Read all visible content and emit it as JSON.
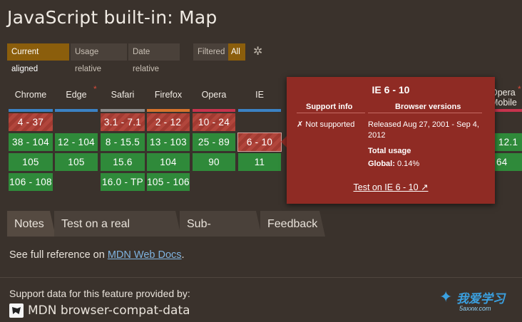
{
  "title": "JavaScript built-in: Map",
  "filters": {
    "current_aligned": "Current aligned",
    "usage_relative": "Usage relative",
    "date_relative": "Date relative",
    "filtered": "Filtered",
    "all": "All"
  },
  "browsers": [
    "Chrome",
    "Edge",
    "Safari",
    "Firefox",
    "Opera",
    "IE"
  ],
  "colors": {
    "red": "#a13a31",
    "green": "#2f8a3a",
    "accent_blue": "#3b82c4",
    "popup": "#8f2b24"
  },
  "columns": {
    "chrome": [
      "4 - 37",
      "38 - 104",
      "105",
      "106 - 108"
    ],
    "edge": [
      "12 - 104",
      "105"
    ],
    "safari": [
      "3.1 - 7.1",
      "8 - 15.5",
      "15.6",
      "16.0 - TP"
    ],
    "firefox": [
      "2 - 12",
      "13 - 103",
      "104",
      "105 - 106"
    ],
    "opera": [
      "10 - 24",
      "25 - 89",
      "90"
    ],
    "ie": [
      "6 - 10",
      "11"
    ]
  },
  "right_fragments": {
    "opera_mobile_1": "Opera",
    "opera_mobile_2": "Mobile",
    "value_1": "- 12.1",
    "value_2": "64"
  },
  "popup": {
    "title": "IE 6 - 10",
    "support_info_h": "Support info",
    "browser_versions_h": "Browser versions",
    "not_supported": "✗ Not supported",
    "released_1": "Released Aug 27, 2001 - Sep 4,",
    "released_2": "2012",
    "total_usage_h": "Total usage",
    "global_label": "Global:",
    "global_value": "0.14%",
    "test_link": "Test on IE 6 - 10 ↗"
  },
  "tabs": [
    "Notes",
    "Test on a real browser",
    "Sub-features",
    "Feedback"
  ],
  "notes": {
    "see_full": "See full reference on ",
    "mdn_link": "MDN Web Docs",
    "period": "."
  },
  "support": {
    "provided_by": "Support data for this feature provided by:",
    "mdn_bcd": "MDN browser-compat-data"
  },
  "watermark": {
    "main": "我爱学习",
    "sub": "5axxw.com"
  }
}
